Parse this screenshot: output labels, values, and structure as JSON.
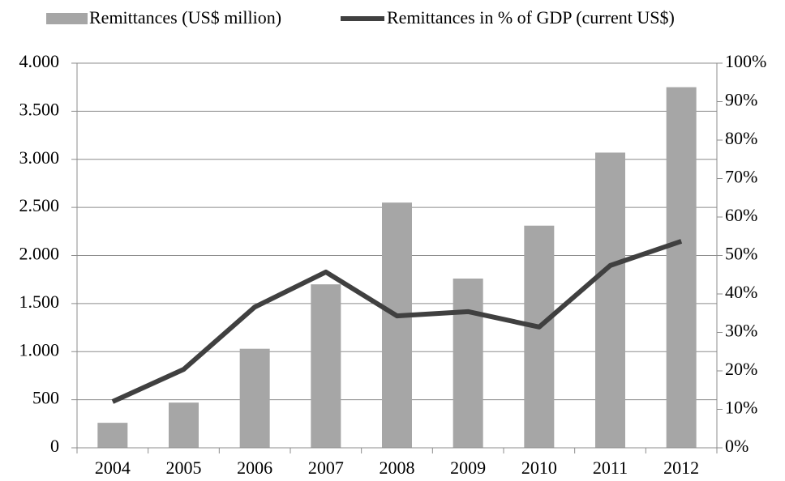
{
  "chart_data": {
    "type": "bar-line",
    "categories": [
      "2004",
      "2005",
      "2006",
      "2007",
      "2008",
      "2009",
      "2010",
      "2011",
      "2012"
    ],
    "series": [
      {
        "name": "Remittances (US$ million)",
        "type": "bar",
        "color": "#a6a6a6",
        "values": [
          260,
          470,
          1030,
          1700,
          2550,
          1760,
          2310,
          3070,
          3750
        ]
      },
      {
        "name": "Remittances in % of GDP (current US$)",
        "type": "line",
        "axis": "y2",
        "color": "#404040",
        "values": [
          12,
          20.4,
          36.6,
          45.7,
          34.3,
          35.4,
          31.4,
          47.4,
          53.7
        ]
      }
    ],
    "ylim": [
      0,
      4000
    ],
    "yticks": [
      0,
      500,
      {
        "value": 1000,
        "label": "1.000"
      },
      {
        "value": 1500,
        "label": "1.500"
      },
      {
        "value": 2000,
        "label": "2.000"
      },
      {
        "value": 2500,
        "label": "2.500"
      },
      {
        "value": 3000,
        "label": "3.000"
      },
      {
        "value": 3500,
        "label": "3.500"
      },
      {
        "value": 4000,
        "label": "4.000"
      }
    ],
    "y2lim": [
      0,
      100
    ],
    "y2ticks": [
      {
        "value": 0,
        "label": "0%"
      },
      {
        "value": 10,
        "label": "10%"
      },
      {
        "value": 20,
        "label": "20%"
      },
      {
        "value": 30,
        "label": "30%"
      },
      {
        "value": 40,
        "label": "40%"
      },
      {
        "value": 50,
        "label": "50%"
      },
      {
        "value": 60,
        "label": "60%"
      },
      {
        "value": 70,
        "label": "70%"
      },
      {
        "value": 80,
        "label": "80%"
      },
      {
        "value": 90,
        "label": "90%"
      },
      {
        "value": 100,
        "label": "100%"
      }
    ],
    "grid": true,
    "legend": "top"
  }
}
